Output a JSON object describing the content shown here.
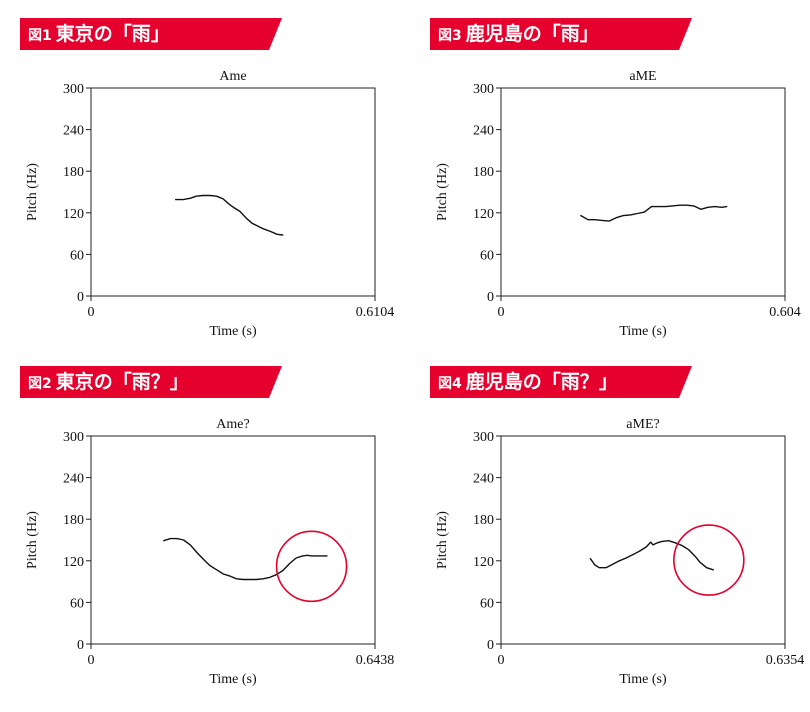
{
  "accent_color": "#e5002d",
  "figures": [
    {
      "fig_label": "図1",
      "heading": "東京の「雨」",
      "chart_data": {
        "type": "line",
        "title": "Ame",
        "xlabel": "Time (s)",
        "ylabel": "Pitch (Hz)",
        "xlim": [
          0,
          0.6104
        ],
        "ylim": [
          0,
          300
        ],
        "x_tick_labels": [
          "0",
          "0.6104"
        ],
        "y_ticks": [
          0,
          60,
          120,
          180,
          240,
          300
        ],
        "series": [
          {
            "x": [
              0.182,
              0.198,
              0.214,
              0.226,
              0.24,
              0.256,
              0.27,
              0.284,
              0.296,
              0.308,
              0.32,
              0.334,
              0.346,
              0.358,
              0.37,
              0.386,
              0.4,
              0.412
            ],
            "y": [
              139,
              139,
              141,
              144,
              145,
              145,
              144,
              140,
              133,
              127,
              122,
              112,
              105,
              101,
              97,
              93,
              89,
              88
            ]
          }
        ]
      }
    },
    {
      "fig_label": "図2",
      "heading": "東京の「雨？」",
      "highlight": {
        "x": 0.5,
        "y": 112,
        "label": ""
      },
      "chart_data": {
        "type": "line",
        "title": "Ame?",
        "xlabel": "Time (s)",
        "ylabel": "Pitch (Hz)",
        "xlim": [
          0,
          0.6438
        ],
        "ylim": [
          0,
          300
        ],
        "x_tick_labels": [
          "0",
          "0.6438"
        ],
        "y_ticks": [
          0,
          60,
          120,
          180,
          240,
          300
        ],
        "series": [
          {
            "x": [
              0.165,
              0.18,
              0.195,
              0.21,
              0.225,
              0.24,
              0.255,
              0.27,
              0.285,
              0.3,
              0.315,
              0.33,
              0.345,
              0.36,
              0.375,
              0.39,
              0.405,
              0.42,
              0.435,
              0.45,
              0.465,
              0.48,
              0.49,
              0.5,
              0.51,
              0.52,
              0.535
            ],
            "y": [
              149,
              152,
              152,
              150,
              143,
              132,
              122,
              113,
              107,
              101,
              98,
              94,
              93,
              93,
              93,
              94,
              96,
              100,
              106,
              116,
              124,
              127,
              128,
              127,
              127,
              127,
              127
            ]
          }
        ]
      }
    },
    {
      "fig_label": "図3",
      "heading": "鹿児島の「雨」",
      "chart_data": {
        "type": "line",
        "title": "aME",
        "xlabel": "Time (s)",
        "ylabel": "Pitch (Hz)",
        "xlim": [
          0,
          0.604
        ],
        "ylim": [
          0,
          300
        ],
        "x_tick_labels": [
          "0",
          "0.604"
        ],
        "y_ticks": [
          0,
          60,
          120,
          180,
          240,
          300
        ],
        "series": [
          {
            "x": [
              0.17,
              0.185,
              0.2,
              0.215,
              0.23,
              0.245,
              0.26,
              0.275,
              0.29,
              0.305,
              0.32,
              0.335,
              0.35,
              0.365,
              0.38,
              0.395,
              0.41,
              0.425,
              0.44,
              0.455,
              0.47,
              0.48
            ],
            "y": [
              116,
              110,
              110,
              109,
              108,
              113,
              116,
              117,
              119,
              121,
              129,
              129,
              129,
              130,
              131,
              131,
              130,
              125,
              128,
              129,
              128,
              129
            ]
          }
        ]
      }
    },
    {
      "fig_label": "図4",
      "heading": "鹿児島の「雨？」",
      "highlight": {
        "x": 0.465,
        "y": 121,
        "label": ""
      },
      "chart_data": {
        "type": "line",
        "title": "aME?",
        "xlabel": "Time (s)",
        "ylabel": "Pitch (Hz)",
        "xlim": [
          0,
          0.6354
        ],
        "ylim": [
          0,
          300
        ],
        "x_tick_labels": [
          "0",
          "0.6354"
        ],
        "y_ticks": [
          0,
          60,
          120,
          180,
          240,
          300
        ],
        "series": [
          {
            "x": [
              0.2,
              0.21,
              0.22,
              0.235,
              0.25,
              0.265,
              0.28,
              0.295,
              0.31,
              0.325,
              0.335,
              0.34,
              0.35,
              0.36,
              0.375,
              0.39,
              0.405,
              0.42,
              0.435,
              0.445,
              0.46,
              0.475
            ],
            "y": [
              123,
              114,
              110,
              110,
              115,
              120,
              124,
              129,
              134,
              140,
              147,
              143,
              146,
              148,
              149,
              146,
              142,
              136,
              126,
              118,
              110,
              107
            ]
          }
        ]
      }
    }
  ]
}
